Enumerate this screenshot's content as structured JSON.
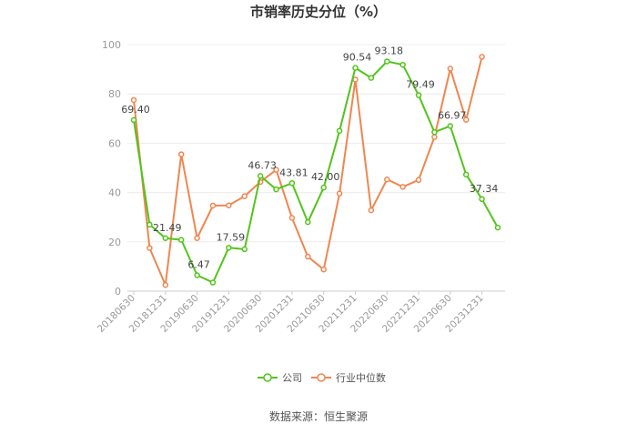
{
  "chart_data": {
    "type": "line",
    "title": "市销率历史分位（%）",
    "ylim": [
      0,
      100
    ],
    "yticks": [
      0,
      20,
      40,
      60,
      80,
      100
    ],
    "grid": true,
    "legend_position": "bottom",
    "x": [
      "20180630",
      "20180930",
      "20181231",
      "20190331",
      "20190630",
      "20190930",
      "20191231",
      "20200331",
      "20200630",
      "20200930",
      "20201231",
      "20210331",
      "20210630",
      "20210930",
      "20211231",
      "20220331",
      "20220630",
      "20220930",
      "20221231",
      "20230331",
      "20230630",
      "20230930",
      "20231231",
      "20240331"
    ],
    "x_tick_labels": [
      "20180630",
      "20181231",
      "20190630",
      "20191231",
      "20200630",
      "20201231",
      "20210630",
      "20211231",
      "20220630",
      "20221231",
      "20230630",
      "20231231"
    ],
    "series": [
      {
        "name": "公司",
        "color": "#52c41a",
        "values": [
          69.4,
          27.0,
          21.49,
          20.8,
          6.47,
          3.5,
          17.59,
          17.0,
          46.73,
          41.3,
          43.81,
          28.0,
          42.0,
          65.0,
          90.54,
          86.5,
          93.18,
          91.8,
          79.49,
          64.5,
          66.97,
          47.3,
          37.34,
          25.8
        ],
        "labels": [
          {
            "index": 0,
            "text": "69.40"
          },
          {
            "index": 2,
            "text": "21.49"
          },
          {
            "index": 4,
            "text": "6.47"
          },
          {
            "index": 6,
            "text": "17.59"
          },
          {
            "index": 8,
            "text": "46.73"
          },
          {
            "index": 10,
            "text": "43.81"
          },
          {
            "index": 12,
            "text": "42.00"
          },
          {
            "index": 14,
            "text": "90.54"
          },
          {
            "index": 16,
            "text": "93.18"
          },
          {
            "index": 18,
            "text": "79.49"
          },
          {
            "index": 20,
            "text": "66.97"
          },
          {
            "index": 22,
            "text": "37.34"
          }
        ]
      },
      {
        "name": "行业中位数",
        "color": "#f08650",
        "values": [
          77.5,
          17.5,
          2.5,
          55.5,
          21.5,
          34.7,
          34.8,
          38.5,
          44.3,
          49.2,
          29.7,
          14.0,
          8.8,
          39.6,
          85.8,
          32.8,
          45.3,
          42.3,
          45.1,
          62.5,
          90.2,
          69.5,
          95.0,
          null
        ]
      }
    ]
  },
  "source": "数据来源：恒生聚源"
}
